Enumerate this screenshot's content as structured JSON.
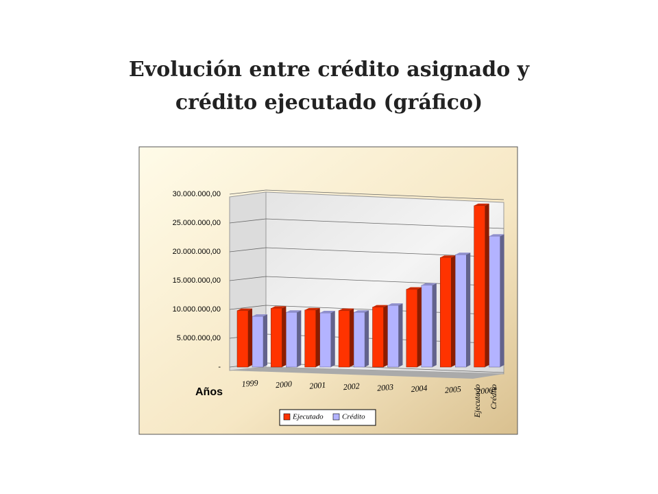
{
  "title": [
    "Evolución entre crédito asignado y",
    "crédito ejecutado (gráfico)"
  ],
  "chart_data": {
    "type": "bar",
    "x_label": "Años",
    "categories": [
      "1999",
      "2000",
      "2001",
      "2002",
      "2003",
      "2004",
      "2005",
      "2006*"
    ],
    "series": [
      {
        "name": "Ejecutado",
        "color": "#ff3300",
        "values": [
          9800000,
          10200000,
          9900000,
          9800000,
          10400000,
          13500000,
          19000000,
          28000000
        ]
      },
      {
        "name": "Crédito",
        "color": "#b3b3ff",
        "values": [
          8800000,
          9500000,
          9400000,
          9500000,
          10700000,
          14200000,
          19500000,
          22700000
        ]
      }
    ],
    "ylim": [
      0,
      30000000
    ],
    "yticks": [
      {
        "value": 0,
        "label": "-"
      },
      {
        "value": 5000000,
        "label": "5.000.000,00"
      },
      {
        "value": 10000000,
        "label": "10.000.000,00"
      },
      {
        "value": 15000000,
        "label": "15.000.000,00"
      },
      {
        "value": 20000000,
        "label": "20.000.000,00"
      },
      {
        "value": 25000000,
        "label": "25.000.000,00"
      },
      {
        "value": 30000000,
        "label": "30.000.000,00"
      }
    ],
    "grid": true,
    "legend": "bottom"
  }
}
